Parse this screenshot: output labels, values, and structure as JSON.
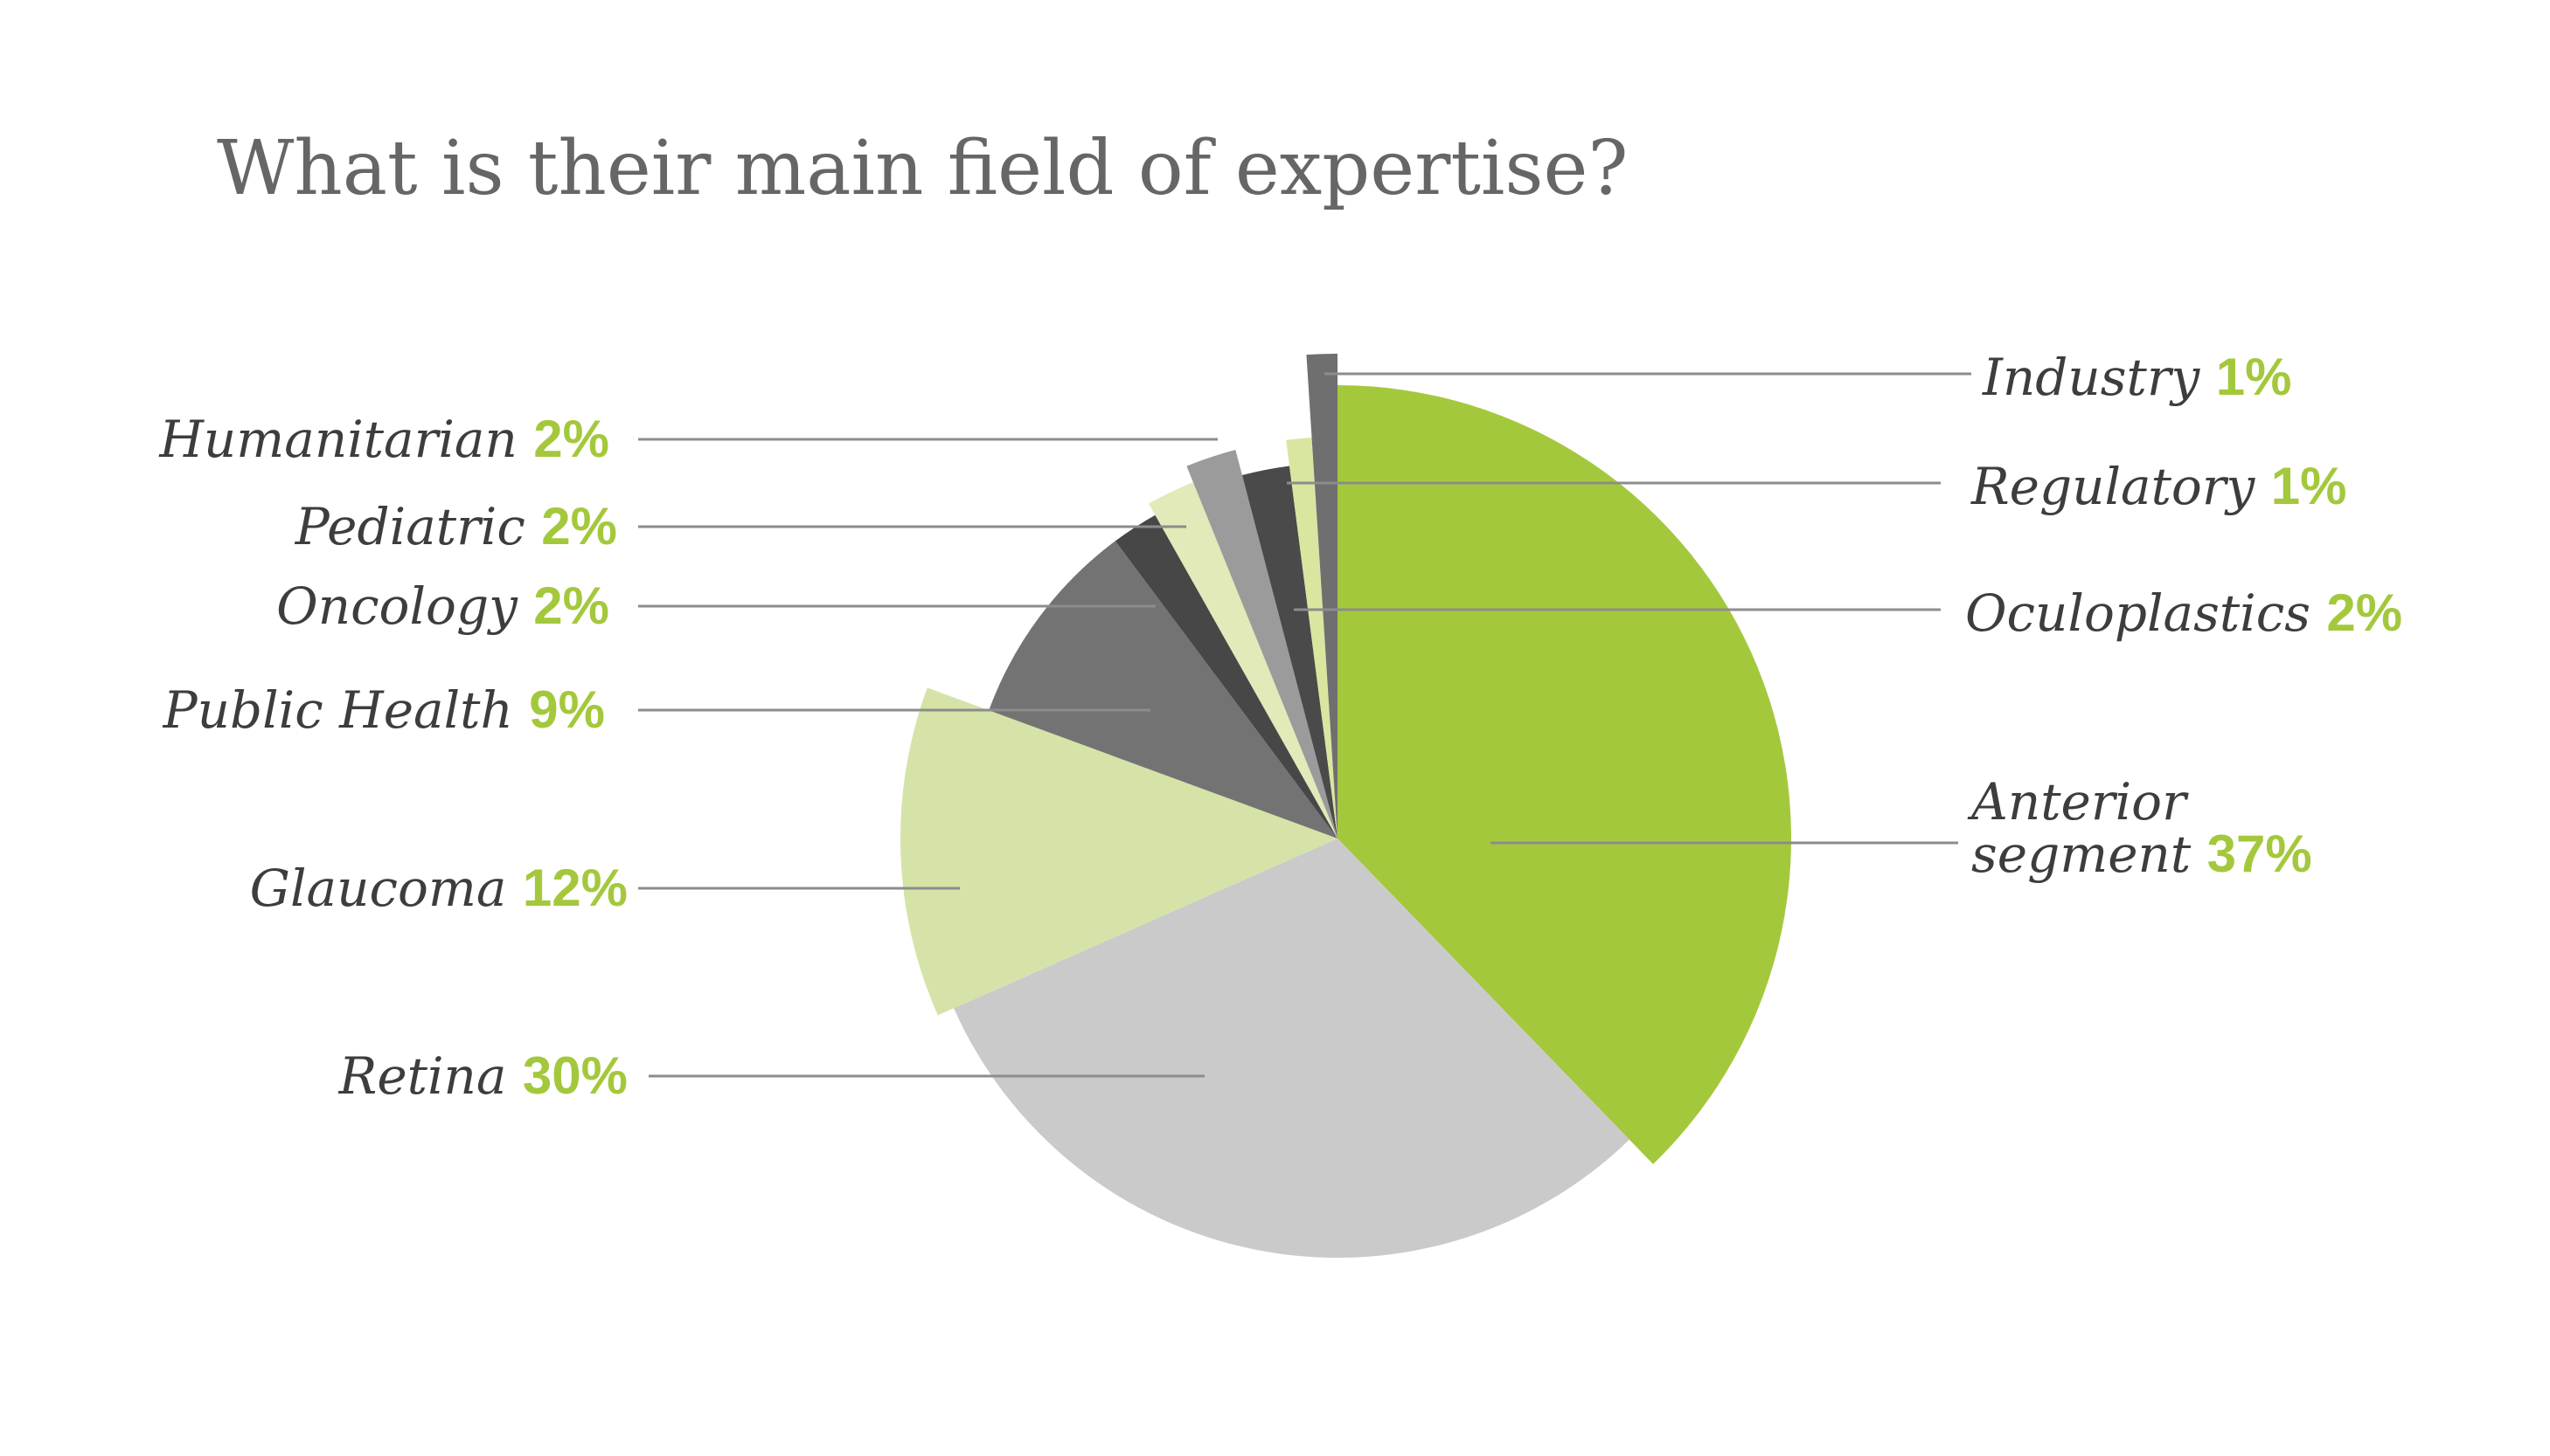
{
  "chart_data": {
    "type": "pie",
    "title": "What is their main field of expertise?",
    "slices": [
      {
        "label": "Anterior segment",
        "value": 37,
        "display": "37%",
        "color": "#a4c83c"
      },
      {
        "label": "Retina",
        "value": 30,
        "display": "30%",
        "color": "#cbcacb"
      },
      {
        "label": "Glaucoma",
        "value": 12,
        "display": "12%",
        "color": "#d5e3a8"
      },
      {
        "label": "Public Health",
        "value": 9,
        "display": "9%",
        "color": "#747374"
      },
      {
        "label": "Oncology",
        "value": 2,
        "display": "2%",
        "color": "#474747"
      },
      {
        "label": "Pediatric",
        "value": 2,
        "display": "2%",
        "color": "#e1eab8"
      },
      {
        "label": "Humanitarian",
        "value": 2,
        "display": "2%",
        "color": "#9b9b9b"
      },
      {
        "label": "Oculoplastics",
        "value": 2,
        "display": "2%",
        "color": "#4a4a4a"
      },
      {
        "label": "Regulatory",
        "value": 1,
        "display": "1%",
        "color": "#d9e6a0"
      },
      {
        "label": "Industry",
        "value": 1,
        "display": "1%",
        "color": "#6f6f70"
      }
    ],
    "label_line_1_anterior": "Anterior",
    "label_line_2_anterior": "segment"
  }
}
